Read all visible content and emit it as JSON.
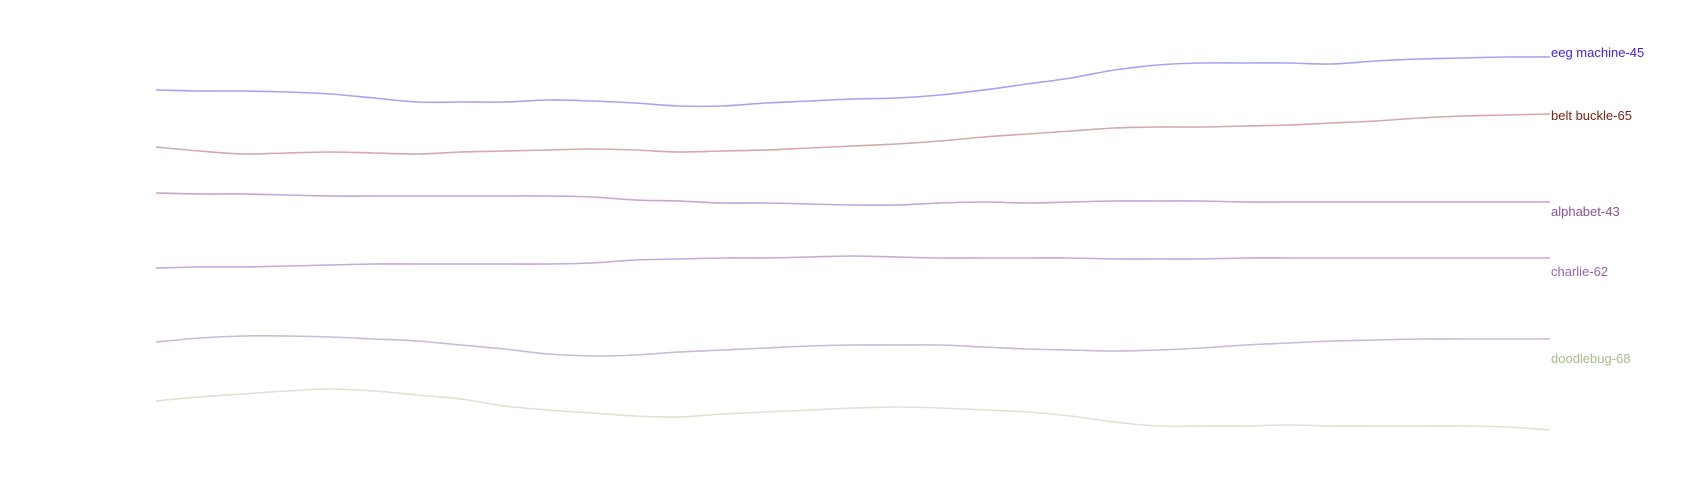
{
  "chart_data": {
    "type": "line",
    "title": "",
    "xlabel": "",
    "ylabel": "",
    "grid": false,
    "legend": "none",
    "x": [
      0,
      1,
      2,
      3,
      4,
      5,
      6,
      7,
      8,
      9,
      10,
      11,
      12,
      13,
      14,
      15,
      16,
      17,
      18,
      19,
      20,
      21,
      22,
      23,
      24,
      25,
      26,
      27,
      28,
      29,
      30,
      31,
      32
    ],
    "xlim": [
      0,
      32
    ],
    "ylim": [
      0,
      500
    ],
    "series": [
      {
        "key": "eeg",
        "name": "eeg machine-45",
        "label": "eeg machine-45",
        "line_color": "#a7a3f3",
        "label_color": "#4a19dc",
        "values": [
          410,
          409,
          409,
          408,
          406,
          402,
          398,
          398,
          398,
          400,
          399,
          397,
          394,
          394,
          397,
          399,
          401,
          402,
          405,
          410,
          416,
          422,
          430,
          435,
          437,
          437,
          437,
          436,
          439,
          441,
          442,
          443,
          443
        ]
      },
      {
        "key": "belt",
        "name": "belt buckle-65",
        "label": "belt buckle-65",
        "line_color": "#d3aaa8",
        "label_color": "#7a2317",
        "values": [
          353,
          349,
          346,
          347,
          348,
          347,
          346,
          348,
          349,
          350,
          351,
          350,
          348,
          349,
          350,
          352,
          354,
          356,
          359,
          363,
          366,
          369,
          372,
          373,
          373,
          374,
          375,
          377,
          379,
          382,
          384,
          385,
          386
        ]
      },
      {
        "key": "alphabet",
        "name": "alphabet-43",
        "label": "alphabet-43",
        "line_color": "#c8a4d2",
        "label_color": "#8a4f9a",
        "values": [
          307,
          306,
          306,
          305,
          304,
          304,
          304,
          304,
          304,
          304,
          303,
          300,
          299,
          297,
          297,
          296,
          295,
          295,
          297,
          298,
          297,
          298,
          299,
          299,
          299,
          298,
          298,
          298,
          298,
          298,
          298,
          298,
          298
        ]
      },
      {
        "key": "charlie",
        "name": "charlie-62",
        "label": "charlie-62",
        "line_color": "#c7a8d8",
        "label_color": "#9365b4",
        "values": [
          232,
          233,
          233,
          234,
          235,
          236,
          236,
          236,
          236,
          236,
          237,
          240,
          241,
          242,
          242,
          243,
          244,
          243,
          242,
          242,
          242,
          242,
          241,
          241,
          241,
          242,
          242,
          242,
          242,
          242,
          242,
          242,
          242
        ]
      },
      {
        "key": "doodlebug",
        "name": "doodlebug-68",
        "label": "doodlebug-68",
        "line_color": "#cdb7da",
        "label_color": "#a9bb86",
        "values": [
          158,
          162,
          164,
          164,
          163,
          161,
          159,
          155,
          151,
          146,
          144,
          145,
          148,
          150,
          152,
          154,
          155,
          155,
          155,
          153,
          151,
          150,
          149,
          150,
          152,
          155,
          157,
          159,
          160,
          161,
          161,
          161,
          161
        ]
      },
      {
        "key": "faint",
        "name": "",
        "label": "",
        "line_color": "#e2e0cf",
        "label_color": "#e2e0cf",
        "values": [
          99,
          103,
          106,
          109,
          111,
          109,
          105,
          101,
          94,
          90,
          87,
          84,
          83,
          86,
          88,
          90,
          92,
          93,
          92,
          90,
          88,
          84,
          78,
          74,
          74,
          74,
          75,
          74,
          74,
          74,
          74,
          73,
          70
        ]
      }
    ]
  }
}
